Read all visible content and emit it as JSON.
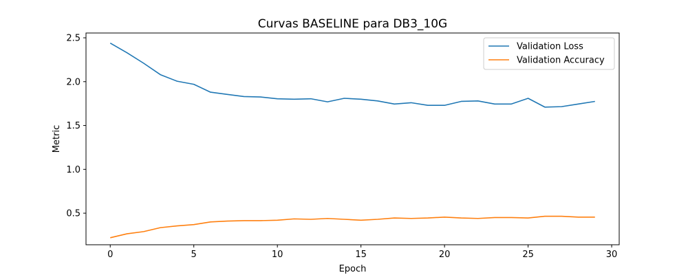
{
  "chart_data": {
    "type": "line",
    "title": "Curvas BASELINE para DB3_10G",
    "xlabel": "Epoch",
    "ylabel": "Metric",
    "xlim": [
      -1.45,
      30.45
    ],
    "ylim": [
      0.14,
      2.555
    ],
    "xticks": [
      0,
      5,
      10,
      15,
      20,
      25,
      30
    ],
    "xtick_labels": [
      "0",
      "5",
      "10",
      "15",
      "20",
      "25",
      "30"
    ],
    "yticks": [
      0.5,
      1.0,
      1.5,
      2.0,
      2.5
    ],
    "ytick_labels": [
      "0.5",
      "1.0",
      "1.5",
      "2.0",
      "2.5"
    ],
    "grid": false,
    "legend_position": "upper right",
    "x": [
      0,
      1,
      2,
      3,
      4,
      5,
      6,
      7,
      8,
      9,
      10,
      11,
      12,
      13,
      14,
      15,
      16,
      17,
      18,
      19,
      20,
      21,
      22,
      23,
      24,
      25,
      26,
      27,
      28,
      29
    ],
    "series": [
      {
        "name": "Validation Loss",
        "color": "#1f77b4",
        "values": [
          2.44,
          2.33,
          2.21,
          2.08,
          2.005,
          1.97,
          1.88,
          1.855,
          1.83,
          1.825,
          1.805,
          1.8,
          1.805,
          1.77,
          1.81,
          1.8,
          1.78,
          1.745,
          1.76,
          1.73,
          1.73,
          1.775,
          1.78,
          1.745,
          1.745,
          1.81,
          1.71,
          1.715,
          1.745,
          1.775
        ]
      },
      {
        "name": "Validation Accuracy",
        "color": "#ff7f0e",
        "values": [
          0.22,
          0.265,
          0.29,
          0.335,
          0.355,
          0.37,
          0.4,
          0.41,
          0.415,
          0.415,
          0.42,
          0.435,
          0.43,
          0.44,
          0.43,
          0.42,
          0.43,
          0.445,
          0.44,
          0.445,
          0.455,
          0.445,
          0.44,
          0.45,
          0.45,
          0.445,
          0.465,
          0.465,
          0.455,
          0.455
        ]
      }
    ]
  }
}
